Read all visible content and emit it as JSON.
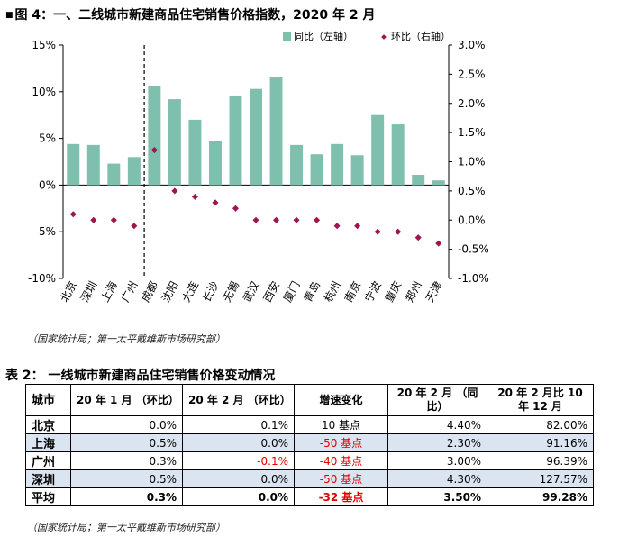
{
  "figure_title": "图 4：一、二线城市新建商品住宅销售价格指数，2020 年 2 月",
  "source_note": "（国家统计局；第一太平戴维斯市场研究部）",
  "chart_data": {
    "type": "bar",
    "categories": [
      "北京",
      "深圳",
      "上海",
      "广州",
      "成都",
      "沈阳",
      "大连",
      "长沙",
      "无锡",
      "武汉",
      "西安",
      "厦门",
      "青岛",
      "杭州",
      "南京",
      "宁波",
      "重庆",
      "郑州",
      "天津"
    ],
    "series": [
      {
        "name": "同比（左轴）",
        "type": "bar",
        "axis": "left",
        "values": [
          4.4,
          4.3,
          2.3,
          3.0,
          10.6,
          9.2,
          7.0,
          4.7,
          9.6,
          10.3,
          11.6,
          4.3,
          3.3,
          4.4,
          3.2,
          7.5,
          6.5,
          1.1,
          0.5
        ]
      },
      {
        "name": "环比（右轴）",
        "type": "scatter",
        "axis": "right",
        "values": [
          0.1,
          0.0,
          0.0,
          -0.1,
          1.2,
          0.5,
          0.4,
          0.3,
          0.2,
          0.0,
          0.0,
          0.0,
          0.0,
          -0.1,
          -0.1,
          -0.2,
          -0.2,
          -0.3,
          -0.4
        ]
      }
    ],
    "y_left": {
      "min": -10,
      "max": 15,
      "ticks": [
        "15%",
        "10%",
        "5%",
        "0%",
        "-5%",
        "-10%"
      ]
    },
    "y_right": {
      "min": -1.0,
      "max": 3.0,
      "ticks": [
        "3.0%",
        "2.5%",
        "2.0%",
        "1.5%",
        "1.0%",
        "0.5%",
        "0.0%",
        "-0.5%",
        "-1.0%"
      ]
    },
    "divider_after_category": "广州",
    "legend_position": "top-right",
    "colors": {
      "bar": "#7fbfad",
      "dot": "#a0154e"
    }
  },
  "table": {
    "title": "表 2：  一线城市新建商品住宅销售价格变动情况",
    "headers": [
      "城市",
      "20 年 1 月 （环比）",
      "20 年 2 月 （环比）",
      "增速变化",
      "20 年 2 月 （同比）",
      "20 年 2 月比 10 年 12 月"
    ],
    "rows": [
      {
        "city": "北京",
        "jan": "0.0%",
        "feb": "0.1%",
        "chg": "10 基点",
        "yoy": "4.40%",
        "vs10": "82.00%"
      },
      {
        "city": "上海",
        "jan": "0.5%",
        "feb": "0.0%",
        "chg": "-50 基点",
        "yoy": "2.30%",
        "vs10": "91.16%"
      },
      {
        "city": "广州",
        "jan": "0.3%",
        "feb": "-0.1%",
        "chg": "-40 基点",
        "yoy": "3.00%",
        "vs10": "96.39%"
      },
      {
        "city": "深圳",
        "jan": "0.5%",
        "feb": "0.0%",
        "chg": "-50 基点",
        "yoy": "4.30%",
        "vs10": "127.57%"
      },
      {
        "city": "平均",
        "jan": "0.3%",
        "feb": "0.0%",
        "chg": "-32 基点",
        "yoy": "3.50%",
        "vs10": "99.28%"
      }
    ]
  }
}
